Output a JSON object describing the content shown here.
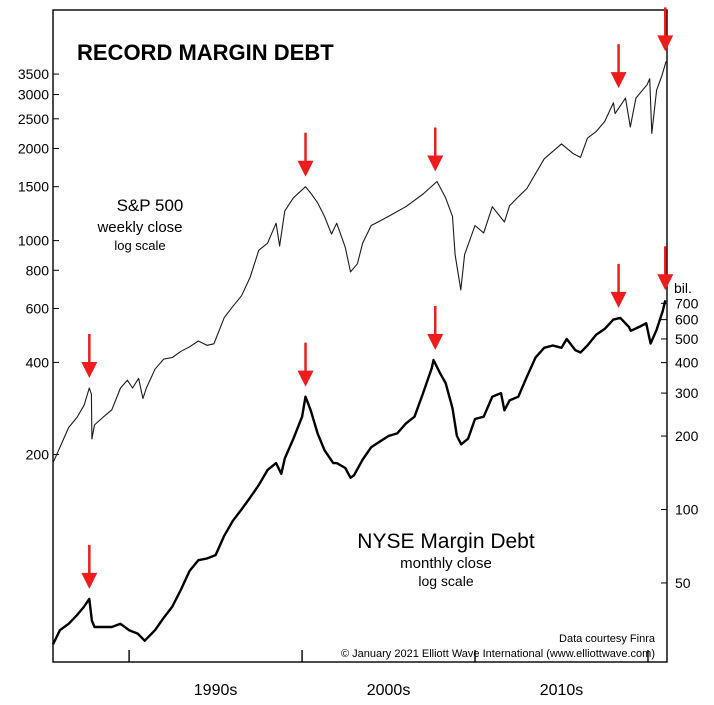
{
  "chart_data": {
    "type": "line",
    "title": "RECORD MARGIN DEBT",
    "x_ticks": [
      "1990s",
      "2000s",
      "2010s"
    ],
    "x_range": [
      1985.6,
      2021.1
    ],
    "series": [
      {
        "name": "S&P 500",
        "subtitle_1": "weekly close",
        "subtitle_2": "log scale",
        "axis": "left",
        "scale": "log",
        "yticks": [
          200,
          400,
          600,
          800,
          1000,
          1500,
          2000,
          2500,
          3000,
          3500
        ],
        "points": [
          [
            1985.6,
            188
          ],
          [
            1986.0,
            211
          ],
          [
            1986.5,
            245
          ],
          [
            1987.0,
            265
          ],
          [
            1987.4,
            290
          ],
          [
            1987.7,
            330
          ],
          [
            1987.82,
            315
          ],
          [
            1987.85,
            225
          ],
          [
            1988.0,
            250
          ],
          [
            1988.5,
            265
          ],
          [
            1989.0,
            280
          ],
          [
            1989.5,
            330
          ],
          [
            1989.9,
            350
          ],
          [
            1990.2,
            330
          ],
          [
            1990.55,
            355
          ],
          [
            1990.8,
            305
          ],
          [
            1991.0,
            330
          ],
          [
            1991.5,
            380
          ],
          [
            1992.0,
            410
          ],
          [
            1992.5,
            415
          ],
          [
            1993.0,
            435
          ],
          [
            1993.5,
            450
          ],
          [
            1994.0,
            470
          ],
          [
            1994.5,
            455
          ],
          [
            1994.9,
            460
          ],
          [
            1995.5,
            560
          ],
          [
            1996.0,
            610
          ],
          [
            1996.5,
            660
          ],
          [
            1997.0,
            760
          ],
          [
            1997.5,
            930
          ],
          [
            1998.0,
            980
          ],
          [
            1998.5,
            1140
          ],
          [
            1998.7,
            960
          ],
          [
            1999.0,
            1250
          ],
          [
            1999.5,
            1380
          ],
          [
            2000.2,
            1500
          ],
          [
            2000.5,
            1430
          ],
          [
            2000.9,
            1330
          ],
          [
            2001.3,
            1200
          ],
          [
            2001.7,
            1050
          ],
          [
            2002.0,
            1140
          ],
          [
            2002.5,
            950
          ],
          [
            2002.8,
            790
          ],
          [
            2003.2,
            840
          ],
          [
            2003.5,
            980
          ],
          [
            2004.0,
            1120
          ],
          [
            2005.0,
            1200
          ],
          [
            2006.0,
            1290
          ],
          [
            2007.0,
            1420
          ],
          [
            2007.8,
            1560
          ],
          [
            2008.3,
            1380
          ],
          [
            2008.7,
            1200
          ],
          [
            2008.85,
            900
          ],
          [
            2009.18,
            690
          ],
          [
            2009.4,
            900
          ],
          [
            2010.0,
            1120
          ],
          [
            2010.5,
            1060
          ],
          [
            2011.0,
            1290
          ],
          [
            2011.7,
            1150
          ],
          [
            2012.0,
            1300
          ],
          [
            2012.5,
            1390
          ],
          [
            2013.0,
            1480
          ],
          [
            2014.0,
            1850
          ],
          [
            2015.0,
            2070
          ],
          [
            2015.7,
            1920
          ],
          [
            2016.1,
            1870
          ],
          [
            2016.5,
            2160
          ],
          [
            2017.0,
            2270
          ],
          [
            2017.5,
            2450
          ],
          [
            2018.0,
            2820
          ],
          [
            2018.1,
            2600
          ],
          [
            2018.7,
            2920
          ],
          [
            2018.98,
            2350
          ],
          [
            2019.3,
            2920
          ],
          [
            2019.95,
            3230
          ],
          [
            2020.1,
            3380
          ],
          [
            2020.22,
            2240
          ],
          [
            2020.5,
            3100
          ],
          [
            2020.8,
            3450
          ],
          [
            2021.05,
            3850
          ]
        ]
      },
      {
        "name": "NYSE Margin Debt",
        "subtitle_1": "monthly close",
        "subtitle_2": "log scale",
        "axis": "right",
        "axis_unit": "bil.",
        "scale": "log",
        "yticks": [
          50,
          100,
          200,
          300,
          400,
          500,
          600,
          700
        ],
        "points": [
          [
            1985.6,
            28
          ],
          [
            1986.0,
            32
          ],
          [
            1986.5,
            34
          ],
          [
            1987.0,
            37
          ],
          [
            1987.4,
            40
          ],
          [
            1987.7,
            43
          ],
          [
            1987.85,
            35
          ],
          [
            1988.0,
            33
          ],
          [
            1988.5,
            33
          ],
          [
            1989.0,
            33
          ],
          [
            1989.5,
            34
          ],
          [
            1990.0,
            32
          ],
          [
            1990.5,
            31
          ],
          [
            1990.9,
            29
          ],
          [
            1991.5,
            32
          ],
          [
            1992.0,
            36
          ],
          [
            1992.5,
            40
          ],
          [
            1993.0,
            47
          ],
          [
            1993.5,
            56
          ],
          [
            1994.0,
            62
          ],
          [
            1994.5,
            63
          ],
          [
            1995.0,
            65
          ],
          [
            1995.5,
            78
          ],
          [
            1996.0,
            90
          ],
          [
            1996.5,
            100
          ],
          [
            1997.0,
            112
          ],
          [
            1997.5,
            126
          ],
          [
            1998.0,
            145
          ],
          [
            1998.5,
            155
          ],
          [
            1998.8,
            140
          ],
          [
            1999.0,
            162
          ],
          [
            1999.5,
            195
          ],
          [
            2000.0,
            240
          ],
          [
            2000.2,
            290
          ],
          [
            2000.5,
            255
          ],
          [
            2000.9,
            205
          ],
          [
            2001.3,
            175
          ],
          [
            2001.8,
            155
          ],
          [
            2002.0,
            155
          ],
          [
            2002.5,
            148
          ],
          [
            2002.8,
            135
          ],
          [
            2003.0,
            138
          ],
          [
            2003.5,
            160
          ],
          [
            2004.0,
            180
          ],
          [
            2004.5,
            190
          ],
          [
            2005.0,
            200
          ],
          [
            2005.5,
            205
          ],
          [
            2006.0,
            225
          ],
          [
            2006.5,
            240
          ],
          [
            2007.0,
            300
          ],
          [
            2007.5,
            380
          ],
          [
            2007.6,
            410
          ],
          [
            2008.0,
            360
          ],
          [
            2008.3,
            330
          ],
          [
            2008.7,
            260
          ],
          [
            2008.95,
            200
          ],
          [
            2009.2,
            185
          ],
          [
            2009.6,
            195
          ],
          [
            2010.0,
            235
          ],
          [
            2010.5,
            240
          ],
          [
            2011.0,
            290
          ],
          [
            2011.5,
            300
          ],
          [
            2011.7,
            255
          ],
          [
            2012.0,
            280
          ],
          [
            2012.5,
            290
          ],
          [
            2013.0,
            350
          ],
          [
            2013.5,
            420
          ],
          [
            2014.0,
            460
          ],
          [
            2014.5,
            470
          ],
          [
            2015.0,
            460
          ],
          [
            2015.3,
            500
          ],
          [
            2015.8,
            450
          ],
          [
            2016.1,
            440
          ],
          [
            2016.5,
            470
          ],
          [
            2017.0,
            520
          ],
          [
            2017.5,
            550
          ],
          [
            2018.0,
            600
          ],
          [
            2018.4,
            610
          ],
          [
            2018.9,
            560
          ],
          [
            2019.0,
            540
          ],
          [
            2019.5,
            560
          ],
          [
            2019.9,
            580
          ],
          [
            2020.15,
            479
          ],
          [
            2020.5,
            545
          ],
          [
            2020.85,
            650
          ],
          [
            2021.0,
            720
          ]
        ]
      }
    ],
    "peak_markers": [
      "1987",
      "2000",
      "2007",
      "2018",
      "2021"
    ],
    "marker_color": "#ee1c1c",
    "credits": [
      "Data courtesy Finra",
      "© January 2021 Elliott Wave International (www.elliottwave.com)"
    ]
  }
}
